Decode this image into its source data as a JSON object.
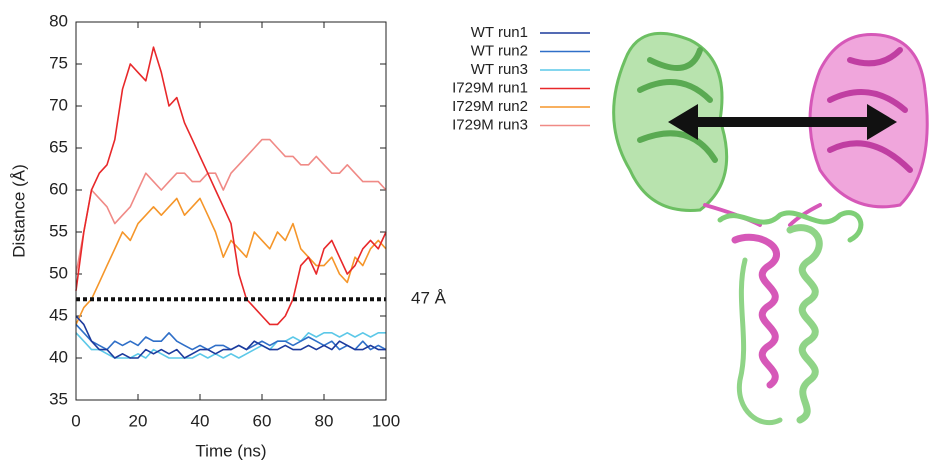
{
  "chart_data": {
    "type": "line",
    "y_label": "Distance (Å)",
    "x_label": "Time (ns)",
    "x": [
      0,
      2.5,
      5,
      7.5,
      10,
      12.5,
      15,
      17.5,
      20,
      22.5,
      25,
      27.5,
      30,
      32.5,
      35,
      37.5,
      40,
      42.5,
      45,
      47.5,
      50,
      52.5,
      55,
      57.5,
      60,
      62.5,
      65,
      67.5,
      70,
      72.5,
      75,
      77.5,
      80,
      82.5,
      85,
      87.5,
      90,
      92.5,
      95,
      97.5,
      100
    ],
    "xlim": [
      0,
      100
    ],
    "xticks": [
      0,
      20,
      40,
      60,
      80,
      100
    ],
    "ylim": [
      35,
      80
    ],
    "yticks": [
      35,
      40,
      45,
      50,
      55,
      60,
      65,
      70,
      75,
      80
    ],
    "grid": false,
    "annotations": [
      {
        "text": "47 Å",
        "y": 47
      }
    ],
    "series": [
      {
        "name": "I729M run3",
        "color": "#f08a86",
        "values": [
          50,
          55,
          60,
          59,
          58,
          56,
          57,
          58,
          60,
          62,
          61,
          60,
          61,
          62,
          62,
          61,
          61,
          62,
          62,
          60,
          62,
          63,
          64,
          65,
          66,
          66,
          65,
          64,
          64,
          63,
          63,
          64,
          63,
          62,
          62,
          63,
          62,
          61,
          61,
          61,
          60
        ]
      },
      {
        "name": "I729M run2",
        "color": "#f5962a",
        "values": [
          44,
          46,
          47,
          49,
          51,
          53,
          55,
          54,
          56,
          57,
          58,
          57,
          58,
          59,
          57,
          58,
          59,
          57,
          55,
          52,
          54,
          53,
          52,
          55,
          54,
          53,
          55,
          54,
          56,
          53,
          52,
          51,
          51,
          52,
          50,
          49,
          52,
          51,
          53,
          54,
          53
        ]
      },
      {
        "name": "I729M run1",
        "color": "#e8282a",
        "values": [
          48,
          55,
          60,
          62,
          63,
          66,
          72,
          75,
          74,
          73,
          77,
          74,
          70,
          71,
          68,
          66,
          64,
          62,
          60,
          58,
          56,
          50,
          47,
          46,
          45,
          44,
          44,
          45,
          47,
          51,
          52,
          50,
          53,
          54,
          52,
          50,
          51,
          53,
          54,
          53,
          55
        ]
      },
      {
        "name": "WT run3",
        "color": "#5cc8e8",
        "values": [
          43,
          42,
          41,
          41,
          40.5,
          40,
          40,
          40,
          40.5,
          40,
          41,
          40.5,
          40,
          40,
          40,
          40,
          40.5,
          40,
          40.5,
          40,
          40.5,
          40,
          40.5,
          41,
          41.5,
          41,
          42,
          42,
          42.5,
          42,
          43,
          42.5,
          43,
          43,
          42.5,
          43,
          42.5,
          43,
          42.5,
          43,
          43
        ]
      },
      {
        "name": "WT run2",
        "color": "#2f6fc8",
        "values": [
          44,
          43,
          42,
          41.5,
          41,
          42,
          41.5,
          42,
          41.5,
          42.5,
          42,
          42,
          43,
          42,
          41.5,
          41,
          41.5,
          41,
          41.5,
          41.5,
          41,
          41.5,
          41,
          41.5,
          42,
          41.5,
          42,
          42,
          41.5,
          42,
          42.5,
          42,
          41.5,
          42,
          41,
          41.5,
          41,
          42,
          41,
          41.5,
          41
        ]
      },
      {
        "name": "WT run1",
        "color": "#1c3a9c",
        "values": [
          45,
          44,
          42,
          41,
          41,
          40,
          40.5,
          40,
          40,
          41,
          40.5,
          41,
          40.5,
          41,
          40,
          40.5,
          41,
          41,
          40.5,
          41,
          41,
          41.5,
          41,
          42,
          41.5,
          41,
          41,
          41.5,
          41,
          41,
          41.5,
          41,
          41.5,
          41,
          42,
          41.5,
          41,
          41,
          41.5,
          41,
          41
        ]
      }
    ],
    "legend_order": [
      5,
      4,
      3,
      2,
      1,
      0
    ]
  }
}
